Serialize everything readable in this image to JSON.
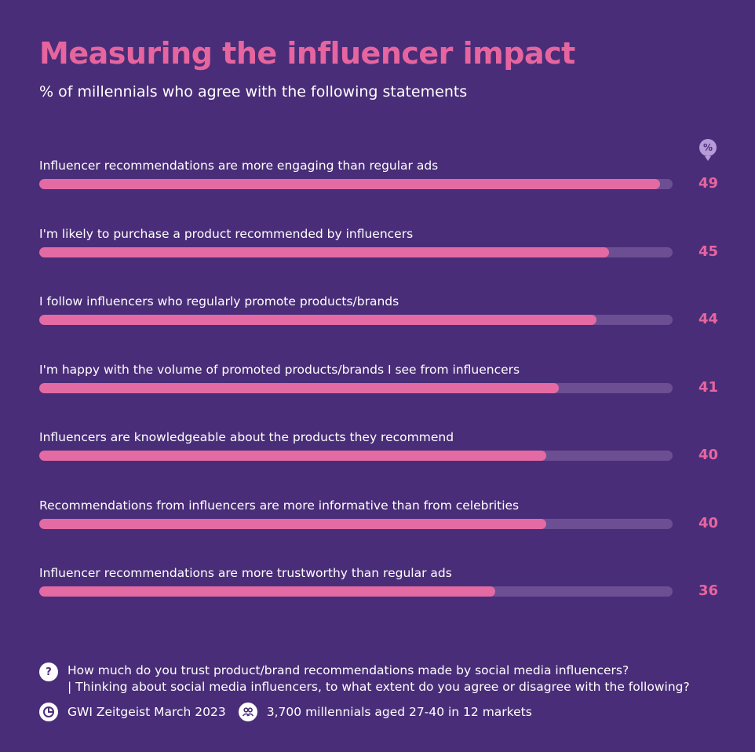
{
  "chart_data": {
    "type": "bar",
    "orientation": "horizontal",
    "title": "Measuring the influencer impact",
    "subtitle": "% of millennials who agree with the following statements",
    "unit_label": "%",
    "xlim": [
      0,
      50
    ],
    "categories": [
      "Influencer recommendations are more engaging than regular ads",
      "I'm likely to purchase a product recommended by influencers",
      "I follow influencers who regularly promote products/brands",
      "I'm happy with the volume of promoted products/brands I see from influencers",
      "Influencers are knowledgeable about the products they recommend",
      "Recommendations from influencers are more informative than from celebrities",
      "Influencer recommendations are more trustworthy than regular ads"
    ],
    "values": [
      49,
      45,
      44,
      41,
      40,
      40,
      36
    ],
    "colors": {
      "bar": "#e46aa3",
      "track": "#6c4f92",
      "accent": "#e7659f",
      "background": "#4a2d78"
    }
  },
  "footer": {
    "question_icon": "question-mark-icon",
    "question_line1": "How much do you trust product/brand recommendations made by social media influencers?",
    "question_line2": "| Thinking about social media influencers, to what extent do you agree or disagree with the following?",
    "source_icon": "pie-chart-icon",
    "source": "GWI Zeitgeist March 2023",
    "sample_icon": "people-icon",
    "sample": "3,700 millennials aged 27-40 in 12 markets"
  }
}
